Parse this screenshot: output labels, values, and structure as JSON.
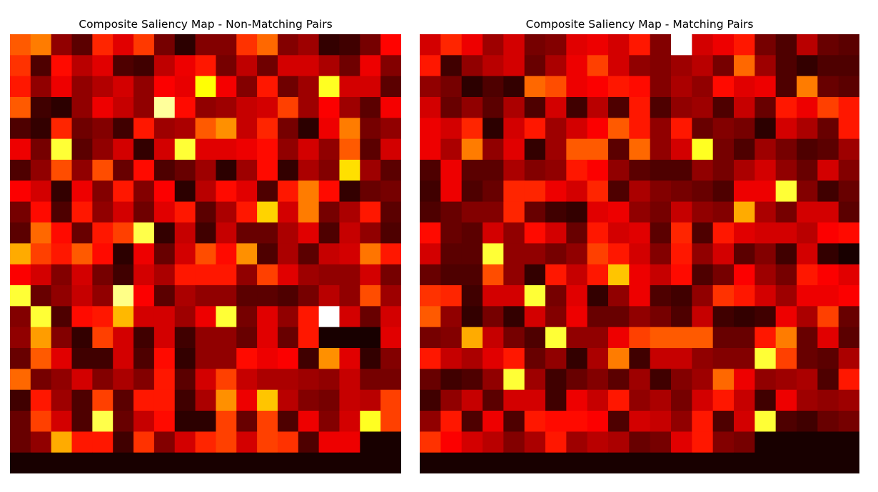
{
  "chart_data": [
    {
      "type": "heatmap",
      "title": "Composite Saliency Map - Non-Matching Pairs",
      "colormap": "hot",
      "rows": 21,
      "cols": 19,
      "value_range": [
        0,
        1
      ],
      "values": [
        [
          0.5,
          0.55,
          0.2,
          0.12,
          0.42,
          0.32,
          0.45,
          0.16,
          0.05,
          0.18,
          0.18,
          0.44,
          0.52,
          0.18,
          0.22,
          0.06,
          0.08,
          0.16,
          0.37
        ],
        [
          0.44,
          0.1,
          0.38,
          0.26,
          0.32,
          0.1,
          0.08,
          0.27,
          0.34,
          0.4,
          0.16,
          0.27,
          0.15,
          0.3,
          0.3,
          0.24,
          0.15,
          0.34,
          0.18
        ],
        [
          0.4,
          0.2,
          0.34,
          0.2,
          0.25,
          0.3,
          0.2,
          0.36,
          0.33,
          0.75,
          0.35,
          0.18,
          0.4,
          0.15,
          0.22,
          0.78,
          0.3,
          0.3,
          0.12
        ],
        [
          0.5,
          0.08,
          0.05,
          0.2,
          0.34,
          0.28,
          0.2,
          0.9,
          0.38,
          0.2,
          0.22,
          0.28,
          0.3,
          0.46,
          0.22,
          0.36,
          0.22,
          0.12,
          0.35
        ],
        [
          0.1,
          0.06,
          0.42,
          0.15,
          0.18,
          0.08,
          0.4,
          0.22,
          0.24,
          0.5,
          0.58,
          0.28,
          0.42,
          0.16,
          0.05,
          0.34,
          0.55,
          0.16,
          0.2
        ],
        [
          0.34,
          0.16,
          0.8,
          0.12,
          0.2,
          0.3,
          0.06,
          0.3,
          0.8,
          0.32,
          0.32,
          0.34,
          0.38,
          0.2,
          0.3,
          0.2,
          0.5,
          0.12,
          0.3
        ],
        [
          0.1,
          0.2,
          0.48,
          0.2,
          0.48,
          0.14,
          0.38,
          0.1,
          0.14,
          0.22,
          0.05,
          0.22,
          0.38,
          0.06,
          0.24,
          0.18,
          0.7,
          0.22,
          0.12
        ],
        [
          0.36,
          0.3,
          0.06,
          0.34,
          0.18,
          0.4,
          0.18,
          0.36,
          0.05,
          0.26,
          0.38,
          0.32,
          0.1,
          0.4,
          0.55,
          0.38,
          0.06,
          0.14,
          0.16
        ],
        [
          0.16,
          0.38,
          0.1,
          0.4,
          0.2,
          0.3,
          0.15,
          0.32,
          0.4,
          0.12,
          0.24,
          0.4,
          0.68,
          0.3,
          0.55,
          0.16,
          0.24,
          0.4,
          0.12
        ],
        [
          0.12,
          0.52,
          0.38,
          0.14,
          0.4,
          0.46,
          0.82,
          0.06,
          0.28,
          0.08,
          0.28,
          0.14,
          0.14,
          0.24,
          0.32,
          0.1,
          0.28,
          0.2,
          0.1
        ],
        [
          0.62,
          0.46,
          0.4,
          0.5,
          0.38,
          0.05,
          0.34,
          0.14,
          0.3,
          0.48,
          0.38,
          0.58,
          0.1,
          0.24,
          0.12,
          0.28,
          0.3,
          0.54,
          0.4
        ],
        [
          0.36,
          0.3,
          0.18,
          0.3,
          0.16,
          0.08,
          0.3,
          0.24,
          0.4,
          0.4,
          0.4,
          0.2,
          0.46,
          0.32,
          0.22,
          0.2,
          0.2,
          0.3,
          0.16
        ],
        [
          0.8,
          0.14,
          0.2,
          0.28,
          0.2,
          0.88,
          0.36,
          0.12,
          0.24,
          0.2,
          0.2,
          0.12,
          0.12,
          0.1,
          0.16,
          0.26,
          0.2,
          0.48,
          0.22
        ],
        [
          0.18,
          0.8,
          0.1,
          0.38,
          0.4,
          0.64,
          0.3,
          0.3,
          0.22,
          0.34,
          0.8,
          0.16,
          0.32,
          0.2,
          0.4,
          1.0,
          0.3,
          0.14,
          0.3
        ],
        [
          0.2,
          0.6,
          0.18,
          0.06,
          0.46,
          0.3,
          0.08,
          0.3,
          0.08,
          0.2,
          0.2,
          0.14,
          0.32,
          0.14,
          0.4,
          0.02,
          0.02,
          0.02,
          0.32
        ],
        [
          0.14,
          0.5,
          0.32,
          0.08,
          0.08,
          0.3,
          0.1,
          0.38,
          0.06,
          0.2,
          0.2,
          0.38,
          0.34,
          0.36,
          0.08,
          0.58,
          0.32,
          0.06,
          0.18
        ],
        [
          0.52,
          0.16,
          0.2,
          0.3,
          0.18,
          0.24,
          0.18,
          0.4,
          0.12,
          0.3,
          0.46,
          0.28,
          0.24,
          0.24,
          0.22,
          0.2,
          0.28,
          0.16,
          0.16
        ],
        [
          0.08,
          0.4,
          0.22,
          0.1,
          0.46,
          0.12,
          0.4,
          0.4,
          0.08,
          0.24,
          0.58,
          0.34,
          0.66,
          0.26,
          0.18,
          0.16,
          0.28,
          0.26,
          0.46
        ],
        [
          0.14,
          0.46,
          0.3,
          0.1,
          0.82,
          0.14,
          0.28,
          0.38,
          0.05,
          0.05,
          0.46,
          0.14,
          0.46,
          0.1,
          0.34,
          0.18,
          0.3,
          0.78,
          0.46
        ],
        [
          0.14,
          0.2,
          0.62,
          0.4,
          0.4,
          0.08,
          0.44,
          0.18,
          0.3,
          0.42,
          0.46,
          0.3,
          0.46,
          0.44,
          0.1,
          0.34,
          0.34,
          0.02,
          0.02
        ],
        [
          0.02,
          0.02,
          0.02,
          0.02,
          0.02,
          0.02,
          0.02,
          0.02,
          0.02,
          0.02,
          0.02,
          0.02,
          0.02,
          0.02,
          0.02,
          0.02,
          0.02,
          0.02,
          0.02
        ]
      ]
    },
    {
      "type": "heatmap",
      "title": "Composite Saliency Map - Matching Pairs",
      "colormap": "hot",
      "rows": 21,
      "cols": 21,
      "value_range": [
        0,
        1
      ],
      "values": [
        [
          0.3,
          0.42,
          0.34,
          0.22,
          0.3,
          0.16,
          0.18,
          0.32,
          0.34,
          0.3,
          0.4,
          0.18,
          1.0,
          0.3,
          0.34,
          0.4,
          0.16,
          0.1,
          0.26,
          0.14,
          0.12
        ],
        [
          0.4,
          0.08,
          0.2,
          0.26,
          0.3,
          0.14,
          0.24,
          0.34,
          0.46,
          0.3,
          0.2,
          0.18,
          0.22,
          0.26,
          0.16,
          0.52,
          0.22,
          0.1,
          0.06,
          0.1,
          0.1
        ],
        [
          0.2,
          0.16,
          0.05,
          0.1,
          0.06,
          0.52,
          0.48,
          0.34,
          0.36,
          0.4,
          0.38,
          0.18,
          0.24,
          0.2,
          0.38,
          0.32,
          0.34,
          0.1,
          0.55,
          0.14,
          0.12
        ],
        [
          0.3,
          0.14,
          0.2,
          0.12,
          0.24,
          0.1,
          0.3,
          0.08,
          0.26,
          0.1,
          0.4,
          0.1,
          0.2,
          0.22,
          0.1,
          0.28,
          0.14,
          0.4,
          0.34,
          0.46,
          0.4
        ],
        [
          0.34,
          0.3,
          0.42,
          0.05,
          0.3,
          0.4,
          0.22,
          0.3,
          0.36,
          0.5,
          0.4,
          0.2,
          0.4,
          0.14,
          0.18,
          0.16,
          0.05,
          0.3,
          0.24,
          0.14,
          0.4
        ],
        [
          0.34,
          0.24,
          0.55,
          0.2,
          0.32,
          0.06,
          0.22,
          0.5,
          0.5,
          0.12,
          0.52,
          0.2,
          0.3,
          0.78,
          0.16,
          0.1,
          0.22,
          0.16,
          0.1,
          0.12,
          0.22
        ],
        [
          0.1,
          0.34,
          0.12,
          0.12,
          0.24,
          0.18,
          0.2,
          0.4,
          0.36,
          0.2,
          0.12,
          0.1,
          0.1,
          0.2,
          0.16,
          0.24,
          0.3,
          0.2,
          0.14,
          0.3,
          0.18
        ],
        [
          0.08,
          0.34,
          0.1,
          0.14,
          0.42,
          0.42,
          0.34,
          0.3,
          0.42,
          0.1,
          0.24,
          0.18,
          0.16,
          0.14,
          0.1,
          0.34,
          0.34,
          0.8,
          0.18,
          0.08,
          0.14
        ],
        [
          0.1,
          0.14,
          0.18,
          0.18,
          0.42,
          0.14,
          0.08,
          0.06,
          0.32,
          0.34,
          0.2,
          0.16,
          0.28,
          0.2,
          0.18,
          0.62,
          0.24,
          0.16,
          0.3,
          0.3,
          0.12
        ],
        [
          0.38,
          0.14,
          0.12,
          0.3,
          0.2,
          0.38,
          0.3,
          0.14,
          0.4,
          0.3,
          0.32,
          0.12,
          0.42,
          0.1,
          0.4,
          0.32,
          0.3,
          0.3,
          0.26,
          0.36,
          0.38
        ],
        [
          0.3,
          0.12,
          0.12,
          0.8,
          0.2,
          0.2,
          0.16,
          0.2,
          0.46,
          0.4,
          0.3,
          0.18,
          0.4,
          0.2,
          0.3,
          0.12,
          0.18,
          0.08,
          0.3,
          0.06,
          0.02
        ],
        [
          0.14,
          0.1,
          0.1,
          0.48,
          0.2,
          0.06,
          0.4,
          0.28,
          0.4,
          0.66,
          0.34,
          0.28,
          0.38,
          0.1,
          0.16,
          0.36,
          0.22,
          0.16,
          0.4,
          0.36,
          0.32
        ],
        [
          0.44,
          0.42,
          0.08,
          0.3,
          0.3,
          0.8,
          0.16,
          0.32,
          0.06,
          0.2,
          0.34,
          0.1,
          0.08,
          0.2,
          0.44,
          0.4,
          0.3,
          0.22,
          0.34,
          0.34,
          0.36
        ],
        [
          0.5,
          0.2,
          0.06,
          0.16,
          0.06,
          0.3,
          0.18,
          0.34,
          0.14,
          0.14,
          0.2,
          0.16,
          0.1,
          0.28,
          0.08,
          0.06,
          0.08,
          0.34,
          0.24,
          0.46,
          0.14
        ],
        [
          0.16,
          0.18,
          0.62,
          0.28,
          0.16,
          0.1,
          0.8,
          0.2,
          0.2,
          0.34,
          0.46,
          0.5,
          0.5,
          0.5,
          0.14,
          0.14,
          0.4,
          0.55,
          0.14,
          0.32,
          0.12
        ],
        [
          0.4,
          0.28,
          0.24,
          0.32,
          0.4,
          0.14,
          0.2,
          0.06,
          0.24,
          0.55,
          0.08,
          0.28,
          0.28,
          0.2,
          0.18,
          0.18,
          0.8,
          0.46,
          0.14,
          0.12,
          0.24
        ],
        [
          0.14,
          0.08,
          0.1,
          0.2,
          0.8,
          0.22,
          0.08,
          0.14,
          0.18,
          0.12,
          0.22,
          0.08,
          0.18,
          0.22,
          0.52,
          0.34,
          0.2,
          0.22,
          0.24,
          0.1,
          0.4
        ],
        [
          0.08,
          0.2,
          0.28,
          0.12,
          0.3,
          0.3,
          0.08,
          0.34,
          0.28,
          0.4,
          0.2,
          0.24,
          0.16,
          0.3,
          0.4,
          0.28,
          0.08,
          0.34,
          0.22,
          0.2,
          0.22
        ],
        [
          0.2,
          0.4,
          0.1,
          0.34,
          0.1,
          0.4,
          0.38,
          0.38,
          0.36,
          0.1,
          0.3,
          0.28,
          0.2,
          0.4,
          0.1,
          0.3,
          0.8,
          0.1,
          0.08,
          0.14,
          0.16
        ],
        [
          0.44,
          0.36,
          0.3,
          0.26,
          0.18,
          0.24,
          0.4,
          0.22,
          0.26,
          0.24,
          0.14,
          0.16,
          0.32,
          0.4,
          0.18,
          0.16,
          0.02,
          0.02,
          0.02,
          0.02,
          0.02
        ],
        [
          0.02,
          0.02,
          0.02,
          0.02,
          0.02,
          0.02,
          0.02,
          0.02,
          0.02,
          0.02,
          0.02,
          0.02,
          0.02,
          0.02,
          0.02,
          0.02,
          0.02,
          0.02,
          0.02,
          0.02,
          0.02
        ]
      ]
    }
  ]
}
